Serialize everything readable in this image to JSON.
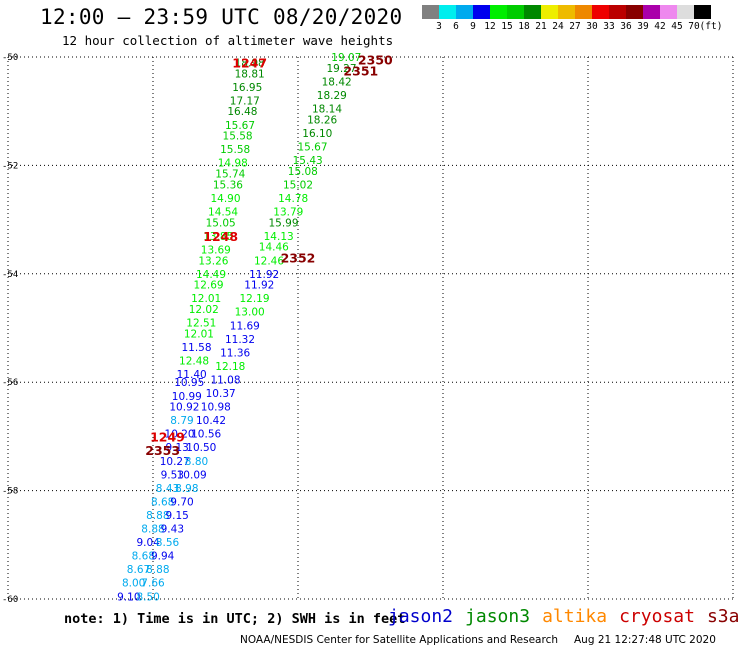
{
  "title": "12:00 – 23:59 UTC 08/20/2020",
  "subtitle": "12 hour collection of altimeter wave heights",
  "colorbar": {
    "colors": [
      "#808080",
      "#00eeee",
      "#00aaee",
      "#0000ee",
      "#00ee00",
      "#00cc00",
      "#008800",
      "#eeee00",
      "#eebb00",
      "#ee8800",
      "#ee0000",
      "#bb0000",
      "#880000",
      "#aa00aa",
      "#ee88ee",
      "#dddddd",
      "#000000"
    ],
    "labels": [
      "3",
      "6",
      "9",
      "12",
      "15",
      "18",
      "21",
      "24",
      "27",
      "30",
      "33",
      "36",
      "39",
      "42",
      "45",
      "70",
      "(ft)"
    ]
  },
  "note": "note: 1) Time is in UTC; 2) SWH is in feet",
  "satellites": [
    {
      "name": "jason2",
      "color": "#0000cc"
    },
    {
      "name": "jason3",
      "color": "#008800"
    },
    {
      "name": "altika",
      "color": "#ff8800"
    },
    {
      "name": "cryosat",
      "color": "#cc0000"
    },
    {
      "name": "s3a",
      "color": "#880000"
    }
  ],
  "footer": {
    "org": "NOAA/NESDIS Center for Satellite Applications and Research",
    "timestamp": "Aug 21 12:27:48 UTC 2020"
  },
  "chart_data": {
    "type": "scatter",
    "xlim": [
      135,
      150
    ],
    "ylim": [
      -60,
      -50
    ],
    "xticks": [
      "135",
      "138",
      "141",
      "144",
      "147",
      "150"
    ],
    "yticks": [
      "-50",
      "-52",
      "-54",
      "-56",
      "-58",
      "-60"
    ],
    "grid": true,
    "series": [
      {
        "name": "jason3",
        "points": [
          {
            "x": 140.0,
            "y": -50.1,
            "label": "18.98",
            "color": "#008800"
          },
          {
            "x": 140.0,
            "y": -50.3,
            "label": "18.81",
            "color": "#008800"
          },
          {
            "x": 139.95,
            "y": -50.55,
            "label": "16.95",
            "color": "#008800"
          },
          {
            "x": 139.9,
            "y": -50.8,
            "label": "17.17",
            "color": "#008800"
          },
          {
            "x": 139.85,
            "y": -51.0,
            "label": "16.48",
            "color": "#008800"
          },
          {
            "x": 139.8,
            "y": -51.25,
            "label": "15.67",
            "color": "#00cc00"
          },
          {
            "x": 139.75,
            "y": -51.45,
            "label": "15.58",
            "color": "#00cc00"
          },
          {
            "x": 139.7,
            "y": -51.7,
            "label": "15.58",
            "color": "#00cc00"
          },
          {
            "x": 139.65,
            "y": -51.95,
            "label": "14.98",
            "color": "#00ee00"
          },
          {
            "x": 139.6,
            "y": -52.15,
            "label": "15.74",
            "color": "#00cc00"
          },
          {
            "x": 139.55,
            "y": -52.35,
            "label": "15.36",
            "color": "#00cc00"
          },
          {
            "x": 139.5,
            "y": -52.6,
            "label": "14.90",
            "color": "#00ee00"
          },
          {
            "x": 139.45,
            "y": -52.85,
            "label": "14.54",
            "color": "#00ee00"
          },
          {
            "x": 139.4,
            "y": -53.05,
            "label": "15.05",
            "color": "#00cc00"
          },
          {
            "x": 139.35,
            "y": -53.3,
            "label": "13.85",
            "color": "#00ee00"
          },
          {
            "x": 139.3,
            "y": -53.55,
            "label": "13.69",
            "color": "#00ee00"
          },
          {
            "x": 139.25,
            "y": -53.75,
            "label": "13.26",
            "color": "#00ee00"
          },
          {
            "x": 139.2,
            "y": -54.0,
            "label": "14.49",
            "color": "#00ee00"
          },
          {
            "x": 139.15,
            "y": -54.2,
            "label": "12.69",
            "color": "#00ee00"
          },
          {
            "x": 139.1,
            "y": -54.45,
            "label": "12.01",
            "color": "#00ee00"
          },
          {
            "x": 139.05,
            "y": -54.65,
            "label": "12.02",
            "color": "#00ee00"
          },
          {
            "x": 139.0,
            "y": -54.9,
            "label": "12.51",
            "color": "#00ee00"
          },
          {
            "x": 138.95,
            "y": -55.1,
            "label": "12.01",
            "color": "#00ee00"
          },
          {
            "x": 138.9,
            "y": -55.35,
            "label": "11.58",
            "color": "#0000ee"
          },
          {
            "x": 138.85,
            "y": -55.6,
            "label": "12.48",
            "color": "#00ee00"
          },
          {
            "x": 138.8,
            "y": -55.85,
            "label": "11.40",
            "color": "#0000ee"
          },
          {
            "x": 138.75,
            "y": -56.0,
            "label": "10.95",
            "color": "#0000ee"
          },
          {
            "x": 138.7,
            "y": -56.25,
            "label": "10.99",
            "color": "#0000ee"
          },
          {
            "x": 138.65,
            "y": -56.45,
            "label": "10.92",
            "color": "#0000ee"
          },
          {
            "x": 138.6,
            "y": -56.7,
            "label": "8.79",
            "color": "#00aaee"
          },
          {
            "x": 138.55,
            "y": -56.95,
            "label": "10.20",
            "color": "#0000ee"
          },
          {
            "x": 138.5,
            "y": -57.2,
            "label": "9.13",
            "color": "#0000ee"
          },
          {
            "x": 138.45,
            "y": -57.45,
            "label": "10.27",
            "color": "#0000ee"
          },
          {
            "x": 138.4,
            "y": -57.7,
            "label": "9.53",
            "color": "#0000ee"
          },
          {
            "x": 138.3,
            "y": -57.95,
            "label": "8.43",
            "color": "#00aaee"
          },
          {
            "x": 138.2,
            "y": -58.2,
            "label": "8.68",
            "color": "#00aaee"
          },
          {
            "x": 138.1,
            "y": -58.45,
            "label": "8.88",
            "color": "#00aaee"
          },
          {
            "x": 138.0,
            "y": -58.7,
            "label": "8.88",
            "color": "#00aaee"
          },
          {
            "x": 137.9,
            "y": -58.95,
            "label": "9.04",
            "color": "#0000ee"
          },
          {
            "x": 137.8,
            "y": -59.2,
            "label": "8.68",
            "color": "#00aaee"
          },
          {
            "x": 137.7,
            "y": -59.45,
            "label": "8.67",
            "color": "#00aaee"
          },
          {
            "x": 137.6,
            "y": -59.7,
            "label": "8.00",
            "color": "#00aaee"
          },
          {
            "x": 137.5,
            "y": -59.95,
            "label": "9.10",
            "color": "#0000ee"
          },
          {
            "x": 137.4,
            "y": -60.2,
            "label": "8.64",
            "color": "#00aaee"
          }
        ]
      },
      {
        "name": "jason2",
        "points": [
          {
            "x": 142.0,
            "y": -50.0,
            "label": "19.07",
            "color": "#00cc00"
          },
          {
            "x": 141.9,
            "y": -50.2,
            "label": "19.27",
            "color": "#008800"
          },
          {
            "x": 141.8,
            "y": -50.45,
            "label": "18.42",
            "color": "#008800"
          },
          {
            "x": 141.7,
            "y": -50.7,
            "label": "18.29",
            "color": "#008800"
          },
          {
            "x": 141.6,
            "y": -50.95,
            "label": "18.14",
            "color": "#008800"
          },
          {
            "x": 141.5,
            "y": -51.15,
            "label": "18.26",
            "color": "#008800"
          },
          {
            "x": 141.4,
            "y": -51.4,
            "label": "16.10",
            "color": "#008800"
          },
          {
            "x": 141.3,
            "y": -51.65,
            "label": "15.67",
            "color": "#00cc00"
          },
          {
            "x": 141.2,
            "y": -51.9,
            "label": "15.43",
            "color": "#00cc00"
          },
          {
            "x": 141.1,
            "y": -52.1,
            "label": "15.08",
            "color": "#00cc00"
          },
          {
            "x": 141.0,
            "y": -52.35,
            "label": "15.02",
            "color": "#00cc00"
          },
          {
            "x": 140.9,
            "y": -52.6,
            "label": "14.78",
            "color": "#00ee00"
          },
          {
            "x": 140.8,
            "y": -52.85,
            "label": "13.79",
            "color": "#00ee00"
          },
          {
            "x": 140.7,
            "y": -53.05,
            "label": "15.99",
            "color": "#008800"
          },
          {
            "x": 140.6,
            "y": -53.3,
            "label": "14.13",
            "color": "#00ee00"
          },
          {
            "x": 140.5,
            "y": -53.5,
            "label": "14.46",
            "color": "#00ee00"
          },
          {
            "x": 140.4,
            "y": -53.75,
            "label": "12.46",
            "color": "#00ee00"
          },
          {
            "x": 140.3,
            "y": -54.0,
            "label": "11.92",
            "color": "#0000ee"
          },
          {
            "x": 140.2,
            "y": -54.2,
            "label": "11.92",
            "color": "#0000ee"
          },
          {
            "x": 140.1,
            "y": -54.45,
            "label": "12.19",
            "color": "#00ee00"
          },
          {
            "x": 140.0,
            "y": -54.7,
            "label": "13.00",
            "color": "#00ee00"
          },
          {
            "x": 139.9,
            "y": -54.95,
            "label": "11.69",
            "color": "#0000ee"
          },
          {
            "x": 139.8,
            "y": -55.2,
            "label": "11.32",
            "color": "#0000ee"
          },
          {
            "x": 139.7,
            "y": -55.45,
            "label": "11.36",
            "color": "#0000ee"
          },
          {
            "x": 139.6,
            "y": -55.7,
            "label": "12.18",
            "color": "#00ee00"
          },
          {
            "x": 139.5,
            "y": -55.95,
            "label": "11.08",
            "color": "#0000ee"
          },
          {
            "x": 139.4,
            "y": -56.2,
            "label": "10.37",
            "color": "#0000ee"
          },
          {
            "x": 139.3,
            "y": -56.45,
            "label": "10.98",
            "color": "#0000ee"
          },
          {
            "x": 139.2,
            "y": -56.7,
            "label": "10.42",
            "color": "#0000ee"
          },
          {
            "x": 139.1,
            "y": -56.95,
            "label": "10.56",
            "color": "#0000ee"
          },
          {
            "x": 139.0,
            "y": -57.2,
            "label": "10.50",
            "color": "#0000ee"
          },
          {
            "x": 138.9,
            "y": -57.45,
            "label": "8.80",
            "color": "#00aaee"
          },
          {
            "x": 138.8,
            "y": -57.7,
            "label": "10.09",
            "color": "#0000ee"
          },
          {
            "x": 138.7,
            "y": -57.95,
            "label": "8.98",
            "color": "#00aaee"
          },
          {
            "x": 138.6,
            "y": -58.2,
            "label": "9.70",
            "color": "#0000ee"
          },
          {
            "x": 138.5,
            "y": -58.45,
            "label": "9.15",
            "color": "#0000ee"
          },
          {
            "x": 138.4,
            "y": -58.7,
            "label": "9.43",
            "color": "#0000ee"
          },
          {
            "x": 138.3,
            "y": -58.95,
            "label": "8.56",
            "color": "#00aaee"
          },
          {
            "x": 138.2,
            "y": -59.2,
            "label": "9.94",
            "color": "#0000ee"
          },
          {
            "x": 138.1,
            "y": -59.45,
            "label": "8.88",
            "color": "#00aaee"
          },
          {
            "x": 138.0,
            "y": -59.7,
            "label": "7.66",
            "color": "#00aaee"
          },
          {
            "x": 137.9,
            "y": -59.95,
            "label": "8.50",
            "color": "#00aaee"
          },
          {
            "x": 137.8,
            "y": -60.2,
            "label": "8.34",
            "color": "#00aaee"
          },
          {
            "x": 137.7,
            "y": -60.45,
            "label": "8.17",
            "color": "#00aaee"
          }
        ]
      }
    ],
    "time_labels": [
      {
        "x": 140.0,
        "y": -50.1,
        "label": "1247",
        "color": "#dd0000"
      },
      {
        "x": 142.6,
        "y": -50.05,
        "label": "2350",
        "color": "#880000"
      },
      {
        "x": 142.3,
        "y": -50.25,
        "label": "2351",
        "color": "#880000"
      },
      {
        "x": 139.4,
        "y": -53.3,
        "label": "1248",
        "color": "#dd0000"
      },
      {
        "x": 141.0,
        "y": -53.7,
        "label": "2352",
        "color": "#880000"
      },
      {
        "x": 138.3,
        "y": -57.0,
        "label": "1249",
        "color": "#dd0000"
      },
      {
        "x": 138.2,
        "y": -57.25,
        "label": "2353",
        "color": "#880000"
      }
    ]
  }
}
